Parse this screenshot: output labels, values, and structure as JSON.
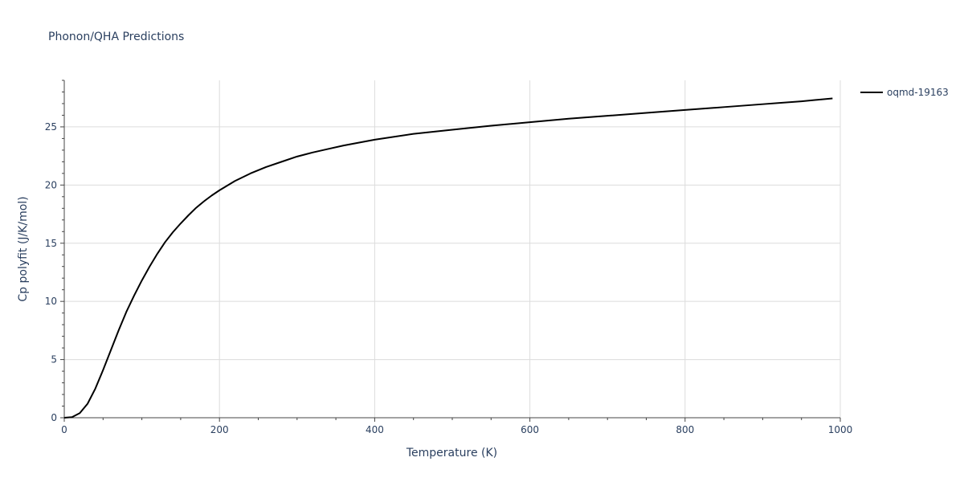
{
  "chart_data": {
    "type": "line",
    "title": "Phonon/QHA Predictions",
    "xlabel": "Temperature (K)",
    "ylabel": "Cp polyfit (J/K/mol)",
    "xlim": [
      0,
      1000
    ],
    "ylim": [
      0,
      29
    ],
    "x_ticks": [
      0,
      200,
      400,
      600,
      800,
      1000
    ],
    "x_tick_labels": [
      "0",
      "200",
      "400",
      "600",
      "800",
      "1000"
    ],
    "y_ticks": [
      0,
      5,
      10,
      15,
      20,
      25
    ],
    "y_tick_labels": [
      "0",
      "5",
      "10",
      "15",
      "20",
      "25"
    ],
    "grid": true,
    "legend_position": "top-right",
    "series": [
      {
        "name": "oqmd-19163",
        "color": "#000000",
        "x": [
          0,
          10,
          20,
          30,
          40,
          50,
          60,
          70,
          80,
          90,
          100,
          110,
          120,
          130,
          140,
          150,
          160,
          170,
          180,
          190,
          200,
          220,
          240,
          260,
          280,
          300,
          320,
          340,
          360,
          380,
          400,
          450,
          500,
          550,
          600,
          650,
          700,
          750,
          800,
          850,
          900,
          950,
          990
        ],
        "y": [
          0,
          0.05,
          0.4,
          1.2,
          2.5,
          4.1,
          5.8,
          7.5,
          9.1,
          10.5,
          11.8,
          13.0,
          14.1,
          15.1,
          15.95,
          16.7,
          17.4,
          18.05,
          18.6,
          19.1,
          19.55,
          20.35,
          21.0,
          21.55,
          22.0,
          22.45,
          22.8,
          23.1,
          23.4,
          23.65,
          23.9,
          24.4,
          24.75,
          25.1,
          25.4,
          25.7,
          25.95,
          26.2,
          26.45,
          26.7,
          26.95,
          27.2,
          27.45
        ]
      }
    ]
  }
}
